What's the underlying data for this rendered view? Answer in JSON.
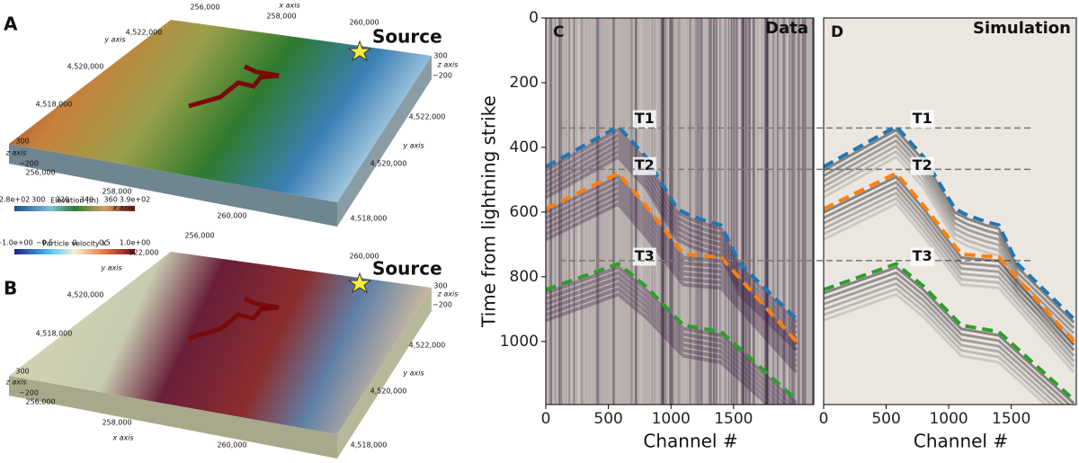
{
  "panels": [
    {
      "label": "A",
      "source": "Source",
      "colorbar": {
        "title": "Elevation (m)",
        "ticks": [
          "2.8e+02",
          "300",
          "320",
          "340",
          "360",
          "3.9e+02"
        ]
      },
      "axis_texts": [
        "256,000",
        "x axis",
        "258,000",
        "260,000",
        "y axis",
        "4,522,000",
        "4,520,000",
        "4,518,000",
        "300",
        "z axis",
        "−200",
        "256,000",
        "258,000",
        "x axis",
        "260,000",
        "4,522,000",
        "y axis",
        "4,520,000",
        "4,518,000",
        "300",
        "z axis",
        "−200"
      ]
    },
    {
      "label": "B",
      "source": "Source",
      "colorbar": {
        "title": "Particle velocity X",
        "ticks": [
          "−1.0e+00",
          "−0.5",
          "0",
          "0.5",
          "1.0e+00"
        ]
      },
      "axis_texts": [
        "256,000",
        "y axis",
        "522,000",
        "260,000",
        "4,520,000",
        "4,518,000",
        "300",
        "z axis",
        "−200",
        "256,000",
        "258,000",
        "x axis",
        "260,000",
        "4,522,000",
        "y axis",
        "4,520,000",
        "4,518,000",
        "300",
        "z axis",
        "−200"
      ]
    }
  ],
  "chart_data": [
    {
      "type": "line",
      "panel_label": "C",
      "title": "Data",
      "ylabel": "Time from lightning strike",
      "xlabel": "Channel #",
      "xlim": [
        0,
        2140
      ],
      "ylim": [
        1195,
        0
      ],
      "xticks": [
        0,
        500,
        1000,
        1500
      ],
      "yticks": [
        0,
        200,
        400,
        600,
        800,
        1000
      ],
      "hlines": [
        340,
        468,
        750
      ],
      "series": [
        {
          "name": "T1",
          "color": "#1f77b4",
          "x": [
            0,
            580,
            800,
            1050,
            1150,
            1300,
            1400,
            1550,
            2000
          ],
          "values": [
            460,
            335,
            430,
            590,
            610,
            630,
            640,
            760,
            930
          ]
        },
        {
          "name": "T2",
          "color": "#ff7f0e",
          "x": [
            0,
            580,
            800,
            1100,
            1400,
            2000
          ],
          "values": [
            590,
            480,
            580,
            730,
            740,
            1000
          ]
        },
        {
          "name": "T3",
          "color": "#2ca02c",
          "x": [
            0,
            580,
            800,
            1100,
            1400,
            2000
          ],
          "values": [
            840,
            760,
            830,
            950,
            970,
            1180
          ]
        }
      ]
    },
    {
      "type": "line",
      "panel_label": "D",
      "title": "Simulation",
      "xlabel": "Channel #",
      "xlim": [
        0,
        2020
      ],
      "ylim": [
        1195,
        0
      ],
      "xticks": [
        0,
        500,
        1000,
        1500
      ],
      "series": [
        {
          "name": "T1",
          "color": "#1f77b4",
          "x": [
            0,
            580,
            800,
            1050,
            1150,
            1300,
            1400,
            1550,
            2000
          ],
          "values": [
            460,
            335,
            430,
            590,
            610,
            630,
            640,
            760,
            930
          ]
        },
        {
          "name": "T2",
          "color": "#ff7f0e",
          "x": [
            0,
            580,
            800,
            1100,
            1400,
            2000
          ],
          "values": [
            590,
            480,
            580,
            730,
            740,
            1000
          ]
        },
        {
          "name": "T3",
          "color": "#2ca02c",
          "x": [
            0,
            580,
            800,
            1100,
            1400,
            2000
          ],
          "values": [
            840,
            760,
            830,
            950,
            970,
            1180
          ]
        }
      ]
    }
  ]
}
